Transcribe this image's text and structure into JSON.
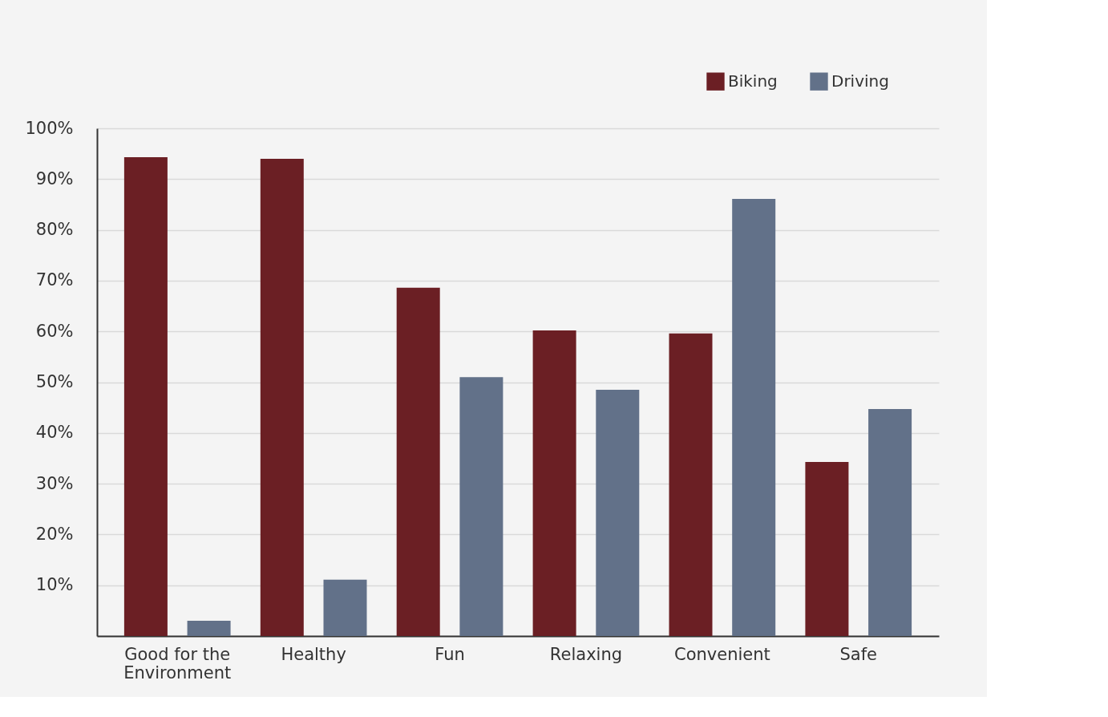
{
  "chart_data": {
    "type": "bar",
    "categories": [
      "Good for the Environment",
      "Healthy",
      "Fun",
      "Relaxing",
      "Convenient",
      "Safe"
    ],
    "series": [
      {
        "name": "Biking",
        "color": "#6b1f24",
        "values": [
          94.3,
          94.0,
          68.6,
          60.2,
          59.6,
          34.3
        ]
      },
      {
        "name": "Driving",
        "color": "#627189",
        "values": [
          3.0,
          11.1,
          51.0,
          48.5,
          86.1,
          44.7
        ]
      }
    ],
    "ylim": [
      0,
      100
    ],
    "yticks": [
      {
        "value": 0,
        "label": null
      },
      {
        "value": 10,
        "label": "10%"
      },
      {
        "value": 20,
        "label": "20%"
      },
      {
        "value": 30,
        "label": "30%"
      },
      {
        "value": 40,
        "label": "40%"
      },
      {
        "value": 50,
        "label": "50%"
      },
      {
        "value": 60,
        "label": "60%"
      },
      {
        "value": 70,
        "label": "70%"
      },
      {
        "value": 80,
        "label": "80%"
      },
      {
        "value": 90,
        "label": "90%"
      },
      {
        "value": 100,
        "label": "100%"
      }
    ],
    "grid": "y",
    "legend": "top right"
  }
}
